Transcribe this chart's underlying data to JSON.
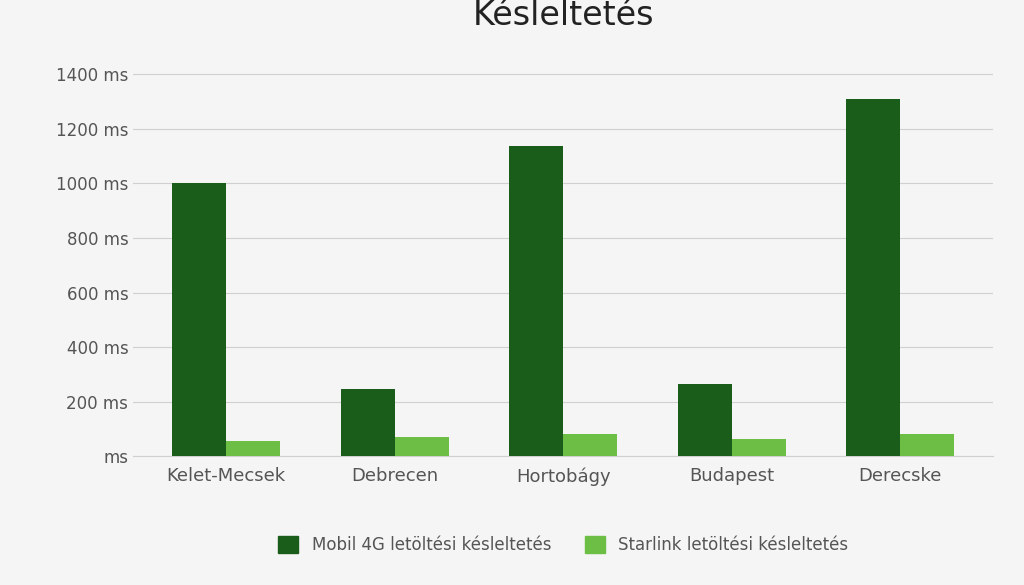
{
  "title": "Késleltetés",
  "categories": [
    "Kelet-Mecsek",
    "Debrecen",
    "Hortobágy",
    "Budapest",
    "Derecske"
  ],
  "mobil_4g": [
    1000,
    245,
    1135,
    265,
    1310
  ],
  "starlink": [
    55,
    70,
    80,
    65,
    80
  ],
  "mobil_color": "#1a5c1a",
  "starlink_color": "#6dbe45",
  "yticks": [
    0,
    200,
    400,
    600,
    800,
    1000,
    1200,
    1400
  ],
  "ytick_labels": [
    "ms",
    "200 ms",
    "400 ms",
    "600 ms",
    "800 ms",
    "1000 ms",
    "1200 ms",
    "1400 ms"
  ],
  "ylim": [
    0,
    1500
  ],
  "legend_mobil": "Mobil 4G letöltési késleltetés",
  "legend_starlink": "Starlink letöltési késleltetés",
  "background_color": "#f5f5f5",
  "plot_bg_color": "#f5f5f5",
  "title_fontsize": 24,
  "bar_width": 0.32,
  "grid_color": "#d0d0d0",
  "tick_fontsize": 12,
  "legend_fontsize": 12,
  "xlabel_fontsize": 13
}
